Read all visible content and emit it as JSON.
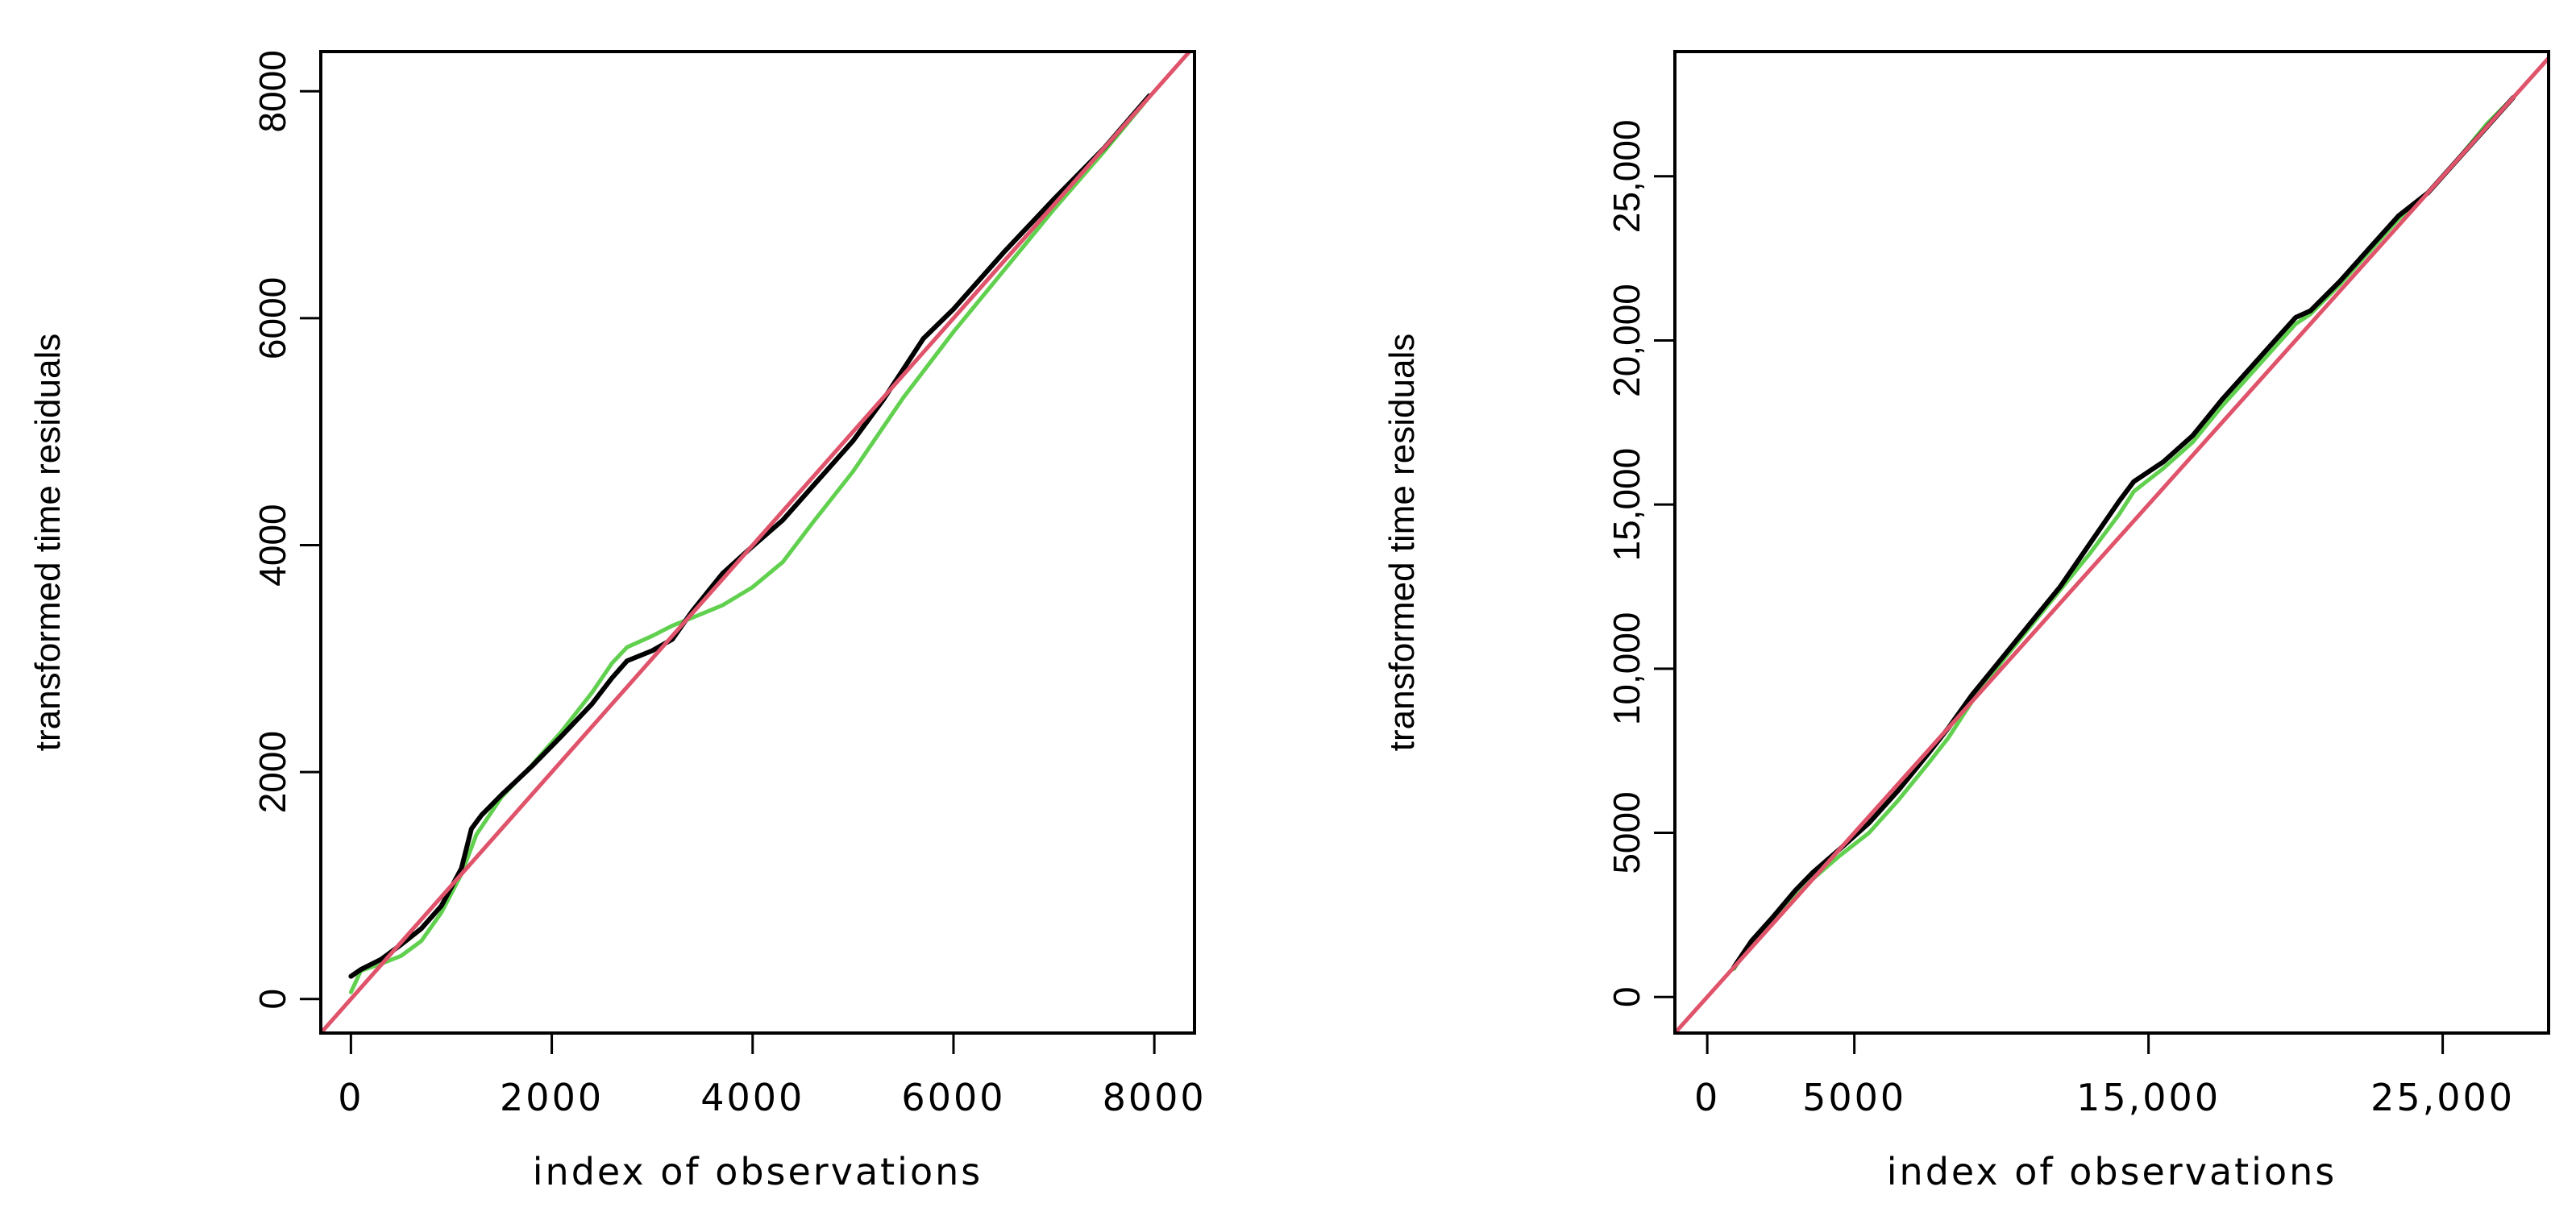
{
  "colors": {
    "observed": "#000000",
    "simulated": "#61D04F",
    "reference": "#DF536B",
    "axis": "#000000"
  },
  "chart_data": [
    {
      "type": "line",
      "xlabel": "index of observations",
      "ylabel": "transformed time residuals",
      "xlim": [
        -300,
        8400
      ],
      "ylim": [
        -300,
        8350
      ],
      "xticks": [
        0,
        2000,
        4000,
        6000,
        8000
      ],
      "xtick_labels": [
        "0",
        "2000",
        "4000",
        "6000",
        "8000"
      ],
      "yticks": [
        0,
        2000,
        4000,
        6000,
        8000
      ],
      "ytick_labels": [
        "0",
        "2000",
        "4000",
        "6000",
        "8000"
      ],
      "grid": false,
      "series": [
        {
          "key": "observed",
          "x": [
            0,
            100,
            300,
            500,
            700,
            900,
            1100,
            1200,
            1300,
            1500,
            1800,
            2100,
            2400,
            2600,
            2750,
            3000,
            3200,
            3400,
            3700,
            4000,
            4300,
            4600,
            5000,
            5300,
            5500,
            5700,
            6000,
            6500,
            7000,
            7500,
            7950
          ],
          "y": [
            200,
            260,
            350,
            480,
            620,
            820,
            1150,
            1500,
            1620,
            1800,
            2050,
            2320,
            2600,
            2830,
            2980,
            3070,
            3170,
            3420,
            3750,
            3990,
            4220,
            4520,
            4920,
            5280,
            5550,
            5820,
            6080,
            6580,
            7050,
            7500,
            7960
          ]
        },
        {
          "key": "simulated",
          "x": [
            0,
            100,
            300,
            500,
            700,
            900,
            1100,
            1250,
            1500,
            1800,
            2100,
            2400,
            2600,
            2750,
            3000,
            3200,
            3400,
            3700,
            4000,
            4300,
            4600,
            5000,
            5500,
            6000,
            6500,
            7000,
            7500,
            7950
          ],
          "y": [
            60,
            250,
            310,
            380,
            510,
            760,
            1100,
            1450,
            1780,
            2060,
            2360,
            2700,
            2960,
            3100,
            3200,
            3290,
            3360,
            3470,
            3630,
            3850,
            4200,
            4650,
            5300,
            5880,
            6420,
            6960,
            7470,
            7950
          ]
        },
        {
          "key": "reference",
          "x": [
            -300,
            8400
          ],
          "y": [
            -300,
            8400
          ]
        }
      ]
    },
    {
      "type": "line",
      "xlabel": "index of observations",
      "ylabel": "transformed time residuals",
      "xlim": [
        -1100,
        28600
      ],
      "ylim": [
        -1100,
        28800
      ],
      "xticks": [
        0,
        5000,
        15000,
        25000
      ],
      "xtick_labels": [
        "0",
        "5000",
        "15,000",
        "25,000"
      ],
      "yticks": [
        0,
        5000,
        10000,
        15000,
        20000,
        25000
      ],
      "ytick_labels": [
        "0",
        "5000",
        "10,000",
        "15,000",
        "20,000",
        "25,000"
      ],
      "grid": false,
      "series": [
        {
          "key": "observed",
          "x": [
            900,
            1500,
            2200,
            3000,
            3600,
            4500,
            5500,
            6500,
            7500,
            8200,
            9000,
            10000,
            11000,
            12000,
            13000,
            14000,
            14500,
            15500,
            16500,
            17500,
            18500,
            19500,
            20000,
            20500,
            21500,
            22500,
            23500,
            24500,
            25500,
            26500,
            27400
          ],
          "y": [
            900,
            1700,
            2400,
            3250,
            3800,
            4500,
            5300,
            6300,
            7400,
            8200,
            9200,
            10300,
            11400,
            12500,
            13800,
            15100,
            15700,
            16300,
            17100,
            18200,
            19200,
            20200,
            20700,
            20900,
            21800,
            22800,
            23800,
            24500,
            25500,
            26500,
            27400
          ]
        },
        {
          "key": "simulated",
          "x": [
            900,
            1500,
            2200,
            3000,
            3600,
            4500,
            5500,
            6500,
            7500,
            8200,
            9000,
            10000,
            11000,
            12000,
            13000,
            14000,
            14500,
            15500,
            16500,
            17500,
            18500,
            19500,
            20000,
            20500,
            21500,
            22500,
            23500,
            24500,
            25500,
            26500,
            27400
          ],
          "y": [
            850,
            1650,
            2250,
            3050,
            3600,
            4300,
            5000,
            6000,
            7100,
            7900,
            9000,
            10200,
            11300,
            12400,
            13500,
            14700,
            15400,
            16100,
            16900,
            18000,
            19000,
            20000,
            20500,
            20800,
            21700,
            22700,
            23700,
            24500,
            25500,
            26600,
            27400
          ]
        },
        {
          "key": "reference",
          "x": [
            -1100,
            28600
          ],
          "y": [
            -1100,
            28600
          ]
        }
      ]
    }
  ]
}
